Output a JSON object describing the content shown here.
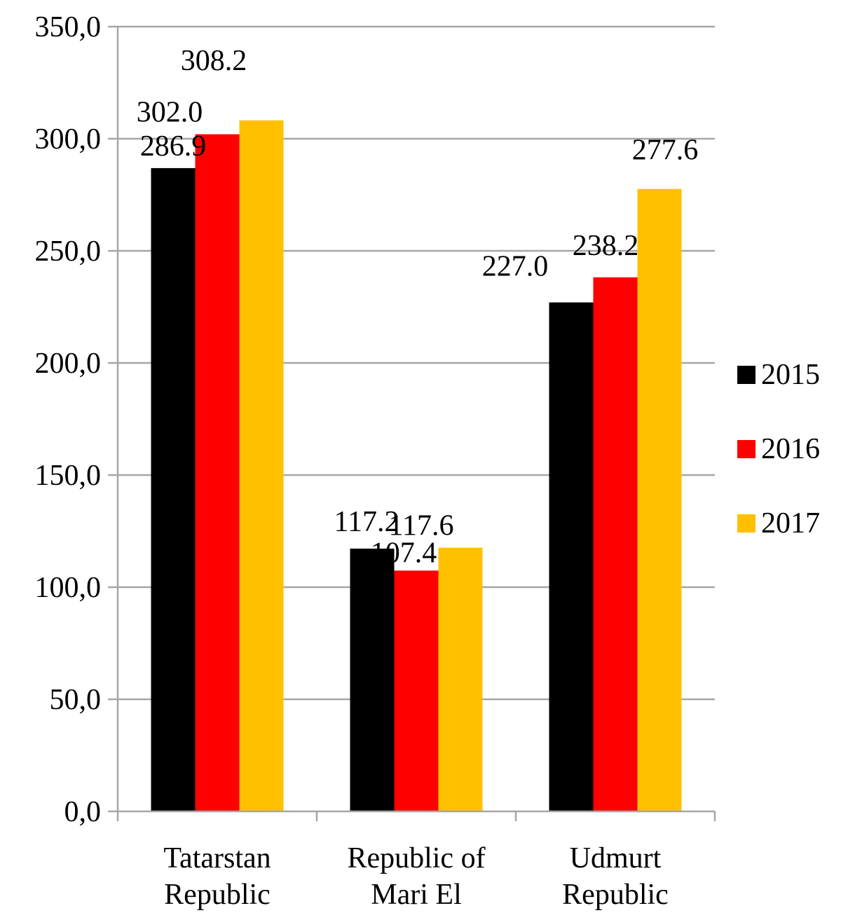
{
  "chart_data": {
    "type": "bar",
    "categories": [
      [
        "Tatarstan",
        "Republic"
      ],
      [
        "Republic of",
        "Mari El"
      ],
      [
        "Udmurt",
        "Republic"
      ]
    ],
    "series": [
      {
        "name": "2015",
        "color": "#000000",
        "values": [
          286.9,
          117.2,
          227.0
        ],
        "labels": [
          "286.9",
          "117.2",
          "227.0"
        ]
      },
      {
        "name": "2016",
        "color": "#ff0000",
        "values": [
          302.0,
          107.4,
          238.2
        ],
        "labels": [
          "302.0",
          "107.4",
          "238.2"
        ]
      },
      {
        "name": "2017",
        "color": "#ffc000",
        "values": [
          308.2,
          117.6,
          277.6
        ],
        "labels": [
          "308.2",
          "117.6",
          "277.6"
        ]
      }
    ],
    "ylim": [
      0,
      350
    ],
    "yticks": [
      0,
      50,
      100,
      150,
      200,
      250,
      300,
      350
    ],
    "ytick_labels": [
      "0,0",
      "50,0",
      "100,0",
      "150,0",
      "200,0",
      "250,0",
      "300,0",
      "350,0"
    ],
    "grid": true,
    "legend_position": "right"
  }
}
